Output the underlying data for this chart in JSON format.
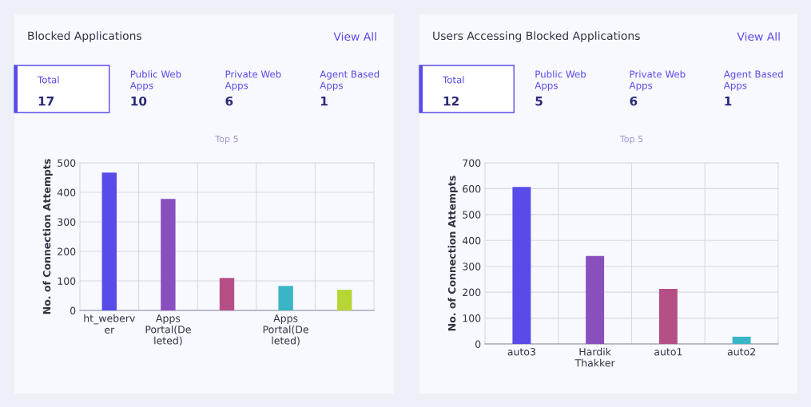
{
  "chart_data": [
    {
      "type": "bar",
      "title": "Blocked Applications",
      "subtitle": "Top 5",
      "ylabel": "No. of Connection Attempts",
      "annotations": [
        "View All",
        "Total",
        "17",
        "Public Web Apps",
        "10",
        "Private Web Apps",
        "6",
        "Agent Based Apps",
        "1"
      ],
      "categories": [
        "ht_weberver",
        "Apps Portal(Deleted)",
        null,
        "Apps Portal(Deleted)",
        null
      ],
      "values": [
        467,
        378,
        110,
        83,
        70
      ],
      "colors": [
        "#584be8",
        "#8a4fbf",
        "#b54f86",
        "#3ab5c6",
        "#b5d634"
      ],
      "ylim": [
        0,
        500
      ],
      "yticks": [
        0,
        100,
        200,
        300,
        400,
        500
      ],
      "grid": true
    },
    {
      "type": "bar",
      "title": "Users Accessing Blocked Applications",
      "subtitle": "Top 5",
      "ylabel": "No. of Connection Attempts",
      "annotations": [
        "View All",
        "Total",
        "12",
        "Public Web Apps",
        "5",
        "Private Web Apps",
        "6",
        "Agent Based Apps",
        "1"
      ],
      "categories": [
        "auto3",
        "Hardik Thakker",
        "auto1",
        "auto2"
      ],
      "values": [
        607,
        340,
        213,
        28
      ],
      "colors": [
        "#584be8",
        "#8a4fbf",
        "#b54f86",
        "#3ab5c6"
      ],
      "ylim": [
        0,
        700
      ],
      "yticks": [
        0,
        100,
        200,
        300,
        400,
        500,
        600,
        700
      ],
      "grid": true
    }
  ]
}
